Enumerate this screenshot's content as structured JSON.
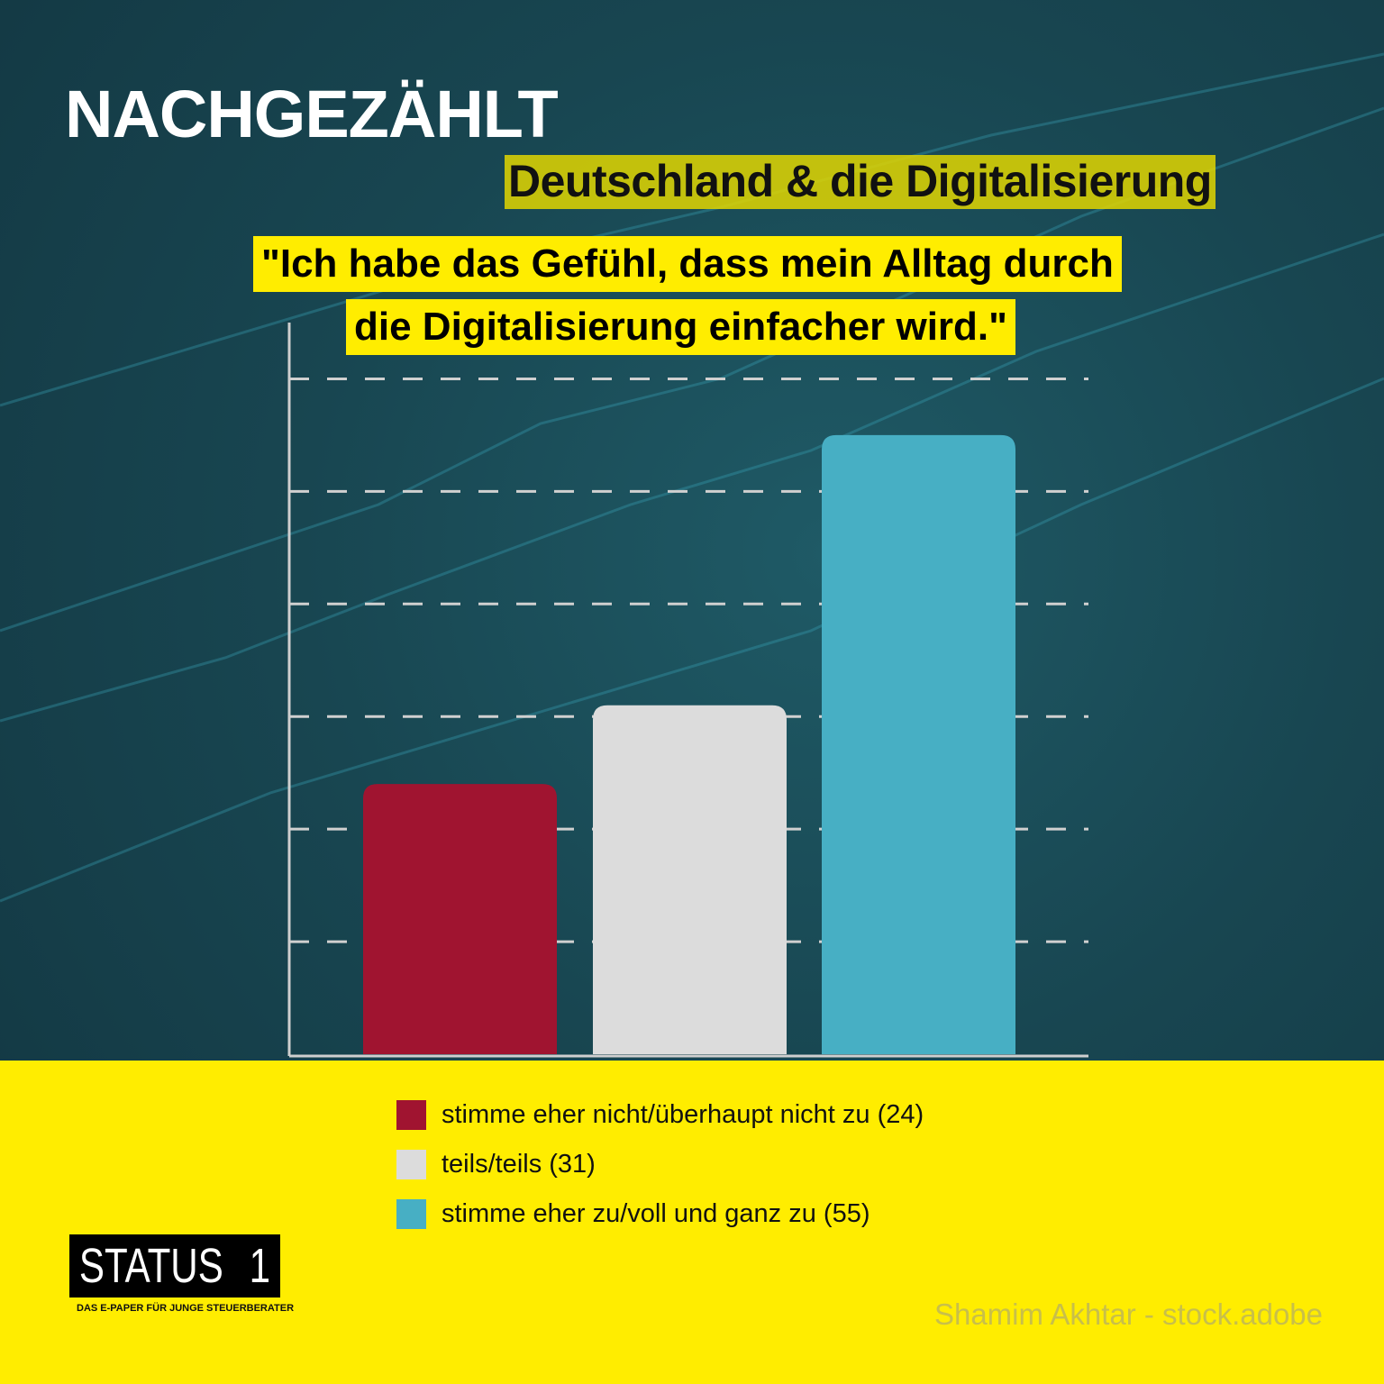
{
  "header": {
    "kicker": "NACHGEZÄHLT",
    "title": "Deutschland & die Digitalisierung"
  },
  "quote": {
    "line1": "\"Ich habe das Gefühl, dass mein Alltag durch",
    "line2": "die Digitalisierung einfacher wird.\""
  },
  "chart_data": {
    "type": "bar",
    "categories": [
      "stimme eher nicht/überhaupt nicht zu",
      "teils/teils",
      "stimme eher zu/voll und ganz zu"
    ],
    "values": [
      24,
      31,
      55
    ],
    "colors": [
      "#a01430",
      "#dcdcdc",
      "#47afc4"
    ],
    "ylim": [
      0,
      65
    ],
    "gridlines": [
      10,
      20,
      30,
      40,
      50,
      60
    ],
    "grid": true,
    "legend_position": "bottom"
  },
  "legend": [
    {
      "label": "stimme eher nicht/überhaupt nicht zu (24)",
      "color": "#a01430"
    },
    {
      "label": "teils/teils (31)",
      "color": "#dcdcdc"
    },
    {
      "label": "stimme eher zu/voll und ganz zu (55)",
      "color": "#47afc4"
    }
  ],
  "logo": {
    "name": "STATUS",
    "number": "1",
    "tagline": "DAS E-PAPER FÜR JUNGE STEUERBERATER"
  },
  "credit": "Shamim Akhtar - stock.adobe"
}
